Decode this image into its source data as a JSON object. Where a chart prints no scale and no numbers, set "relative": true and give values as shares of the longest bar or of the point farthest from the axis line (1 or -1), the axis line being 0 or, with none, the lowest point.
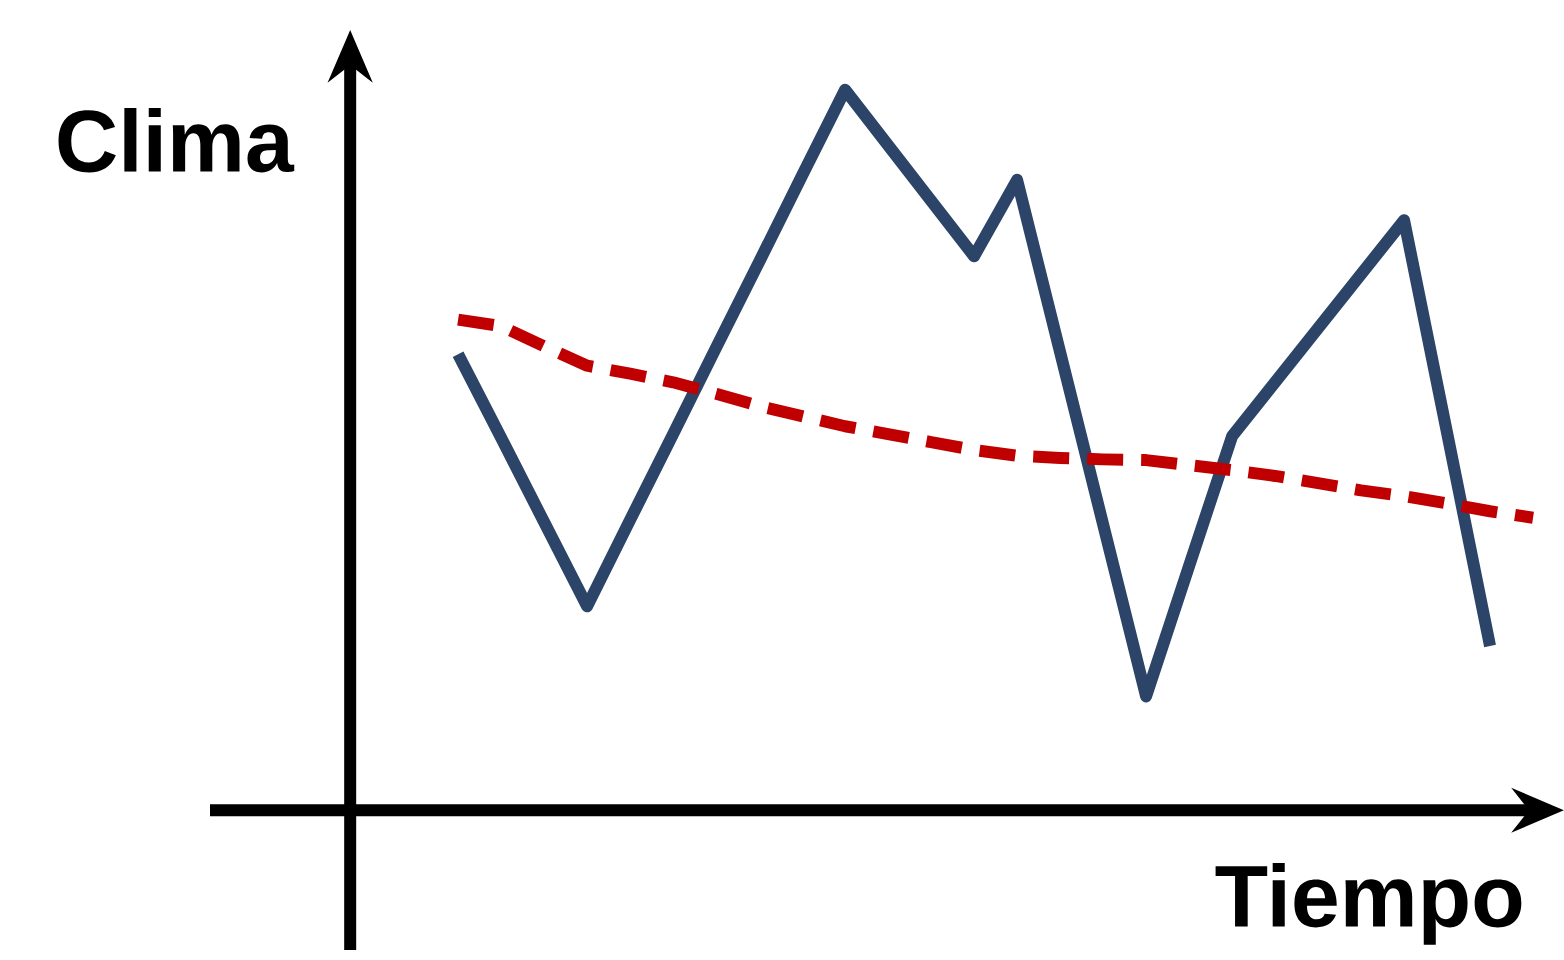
{
  "chart_data": {
    "type": "line",
    "relative": true,
    "xlabel": "Tiempo",
    "ylabel": "Clima",
    "categories": [
      null,
      null,
      null,
      null,
      null,
      null,
      null,
      null,
      null,
      null,
      null,
      null,
      null,
      null,
      null,
      null,
      null,
      null,
      null,
      null,
      null,
      null,
      null,
      null,
      null,
      null
    ],
    "series": [
      {
        "color": "#2b4468",
        "line_style": "solid",
        "values": [
          0.633,
          0.517,
          0.4,
          0.283,
          0.403,
          0.522,
          0.642,
          0.761,
          0.881,
          1.0,
          0.923,
          0.846,
          0.769,
          0.875,
          0.636,
          0.397,
          0.158,
          0.339,
          0.519,
          0.594,
          0.669,
          0.744,
          0.819,
          0.524,
          0.228,
          null
        ]
      },
      {
        "color": "#c00000",
        "line_style": "dashed",
        "values": [
          0.681,
          0.672,
          0.644,
          0.617,
          0.606,
          0.594,
          0.578,
          0.561,
          0.547,
          0.533,
          0.522,
          0.511,
          0.5,
          0.492,
          0.489,
          0.487,
          0.486,
          0.479,
          0.472,
          0.464,
          0.454,
          0.444,
          0.436,
          0.426,
          0.415,
          0.406
        ]
      }
    ]
  }
}
